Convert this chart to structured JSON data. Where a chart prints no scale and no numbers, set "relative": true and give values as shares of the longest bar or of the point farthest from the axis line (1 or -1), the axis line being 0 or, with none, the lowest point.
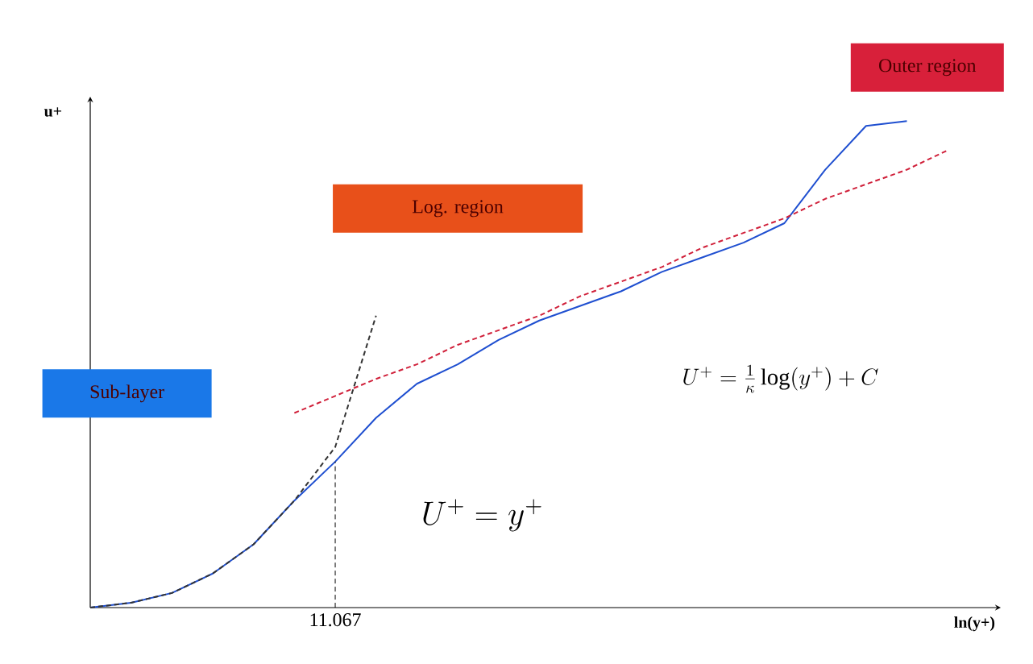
{
  "chart_data": {
    "type": "line",
    "relative": true,
    "xlabel": "ln(y+)",
    "ylabel": "u+",
    "categories": [
      null,
      null,
      null,
      null,
      null,
      null,
      null,
      null,
      null,
      null,
      null,
      null,
      null,
      null,
      null,
      null,
      null,
      null,
      null,
      null,
      null,
      null
    ],
    "series": [
      {
        "color": "#1f4fd0",
        "line_style": "solid",
        "values": [
          0,
          0.01,
          0.03,
          0.07,
          0.13,
          0.22,
          0.3,
          0.39,
          0.46,
          0.5,
          0.55,
          0.59,
          0.62,
          0.65,
          0.69,
          0.72,
          0.75,
          0.79,
          0.9,
          0.99,
          1,
          null
        ]
      },
      {
        "color": "#d0203a",
        "line_style": "dashed",
        "values": [
          null,
          null,
          null,
          null,
          null,
          0.4,
          0.435,
          0.47,
          0.5,
          0.54,
          0.57,
          0.6,
          0.64,
          0.67,
          0.7,
          0.74,
          0.77,
          0.8,
          0.84,
          0.87,
          0.9,
          0.94
        ]
      },
      {
        "color": "#333333",
        "line_style": "dashed",
        "values": [
          0,
          0.01,
          0.03,
          0.07,
          0.13,
          0.22,
          0.33,
          0.6,
          null,
          null,
          null,
          null,
          null,
          null,
          null,
          null,
          null,
          null,
          null,
          null,
          null,
          null
        ]
      }
    ],
    "annotations": [
      "Outer region",
      "Log. region",
      "Sub-layer",
      "U^{+} = \\frac{1}{\\kappa}\\log( y^{+}) + C",
      "U^{+} = y^{+}",
      "11.067"
    ],
    "marker": "none",
    "grid": false
  }
}
